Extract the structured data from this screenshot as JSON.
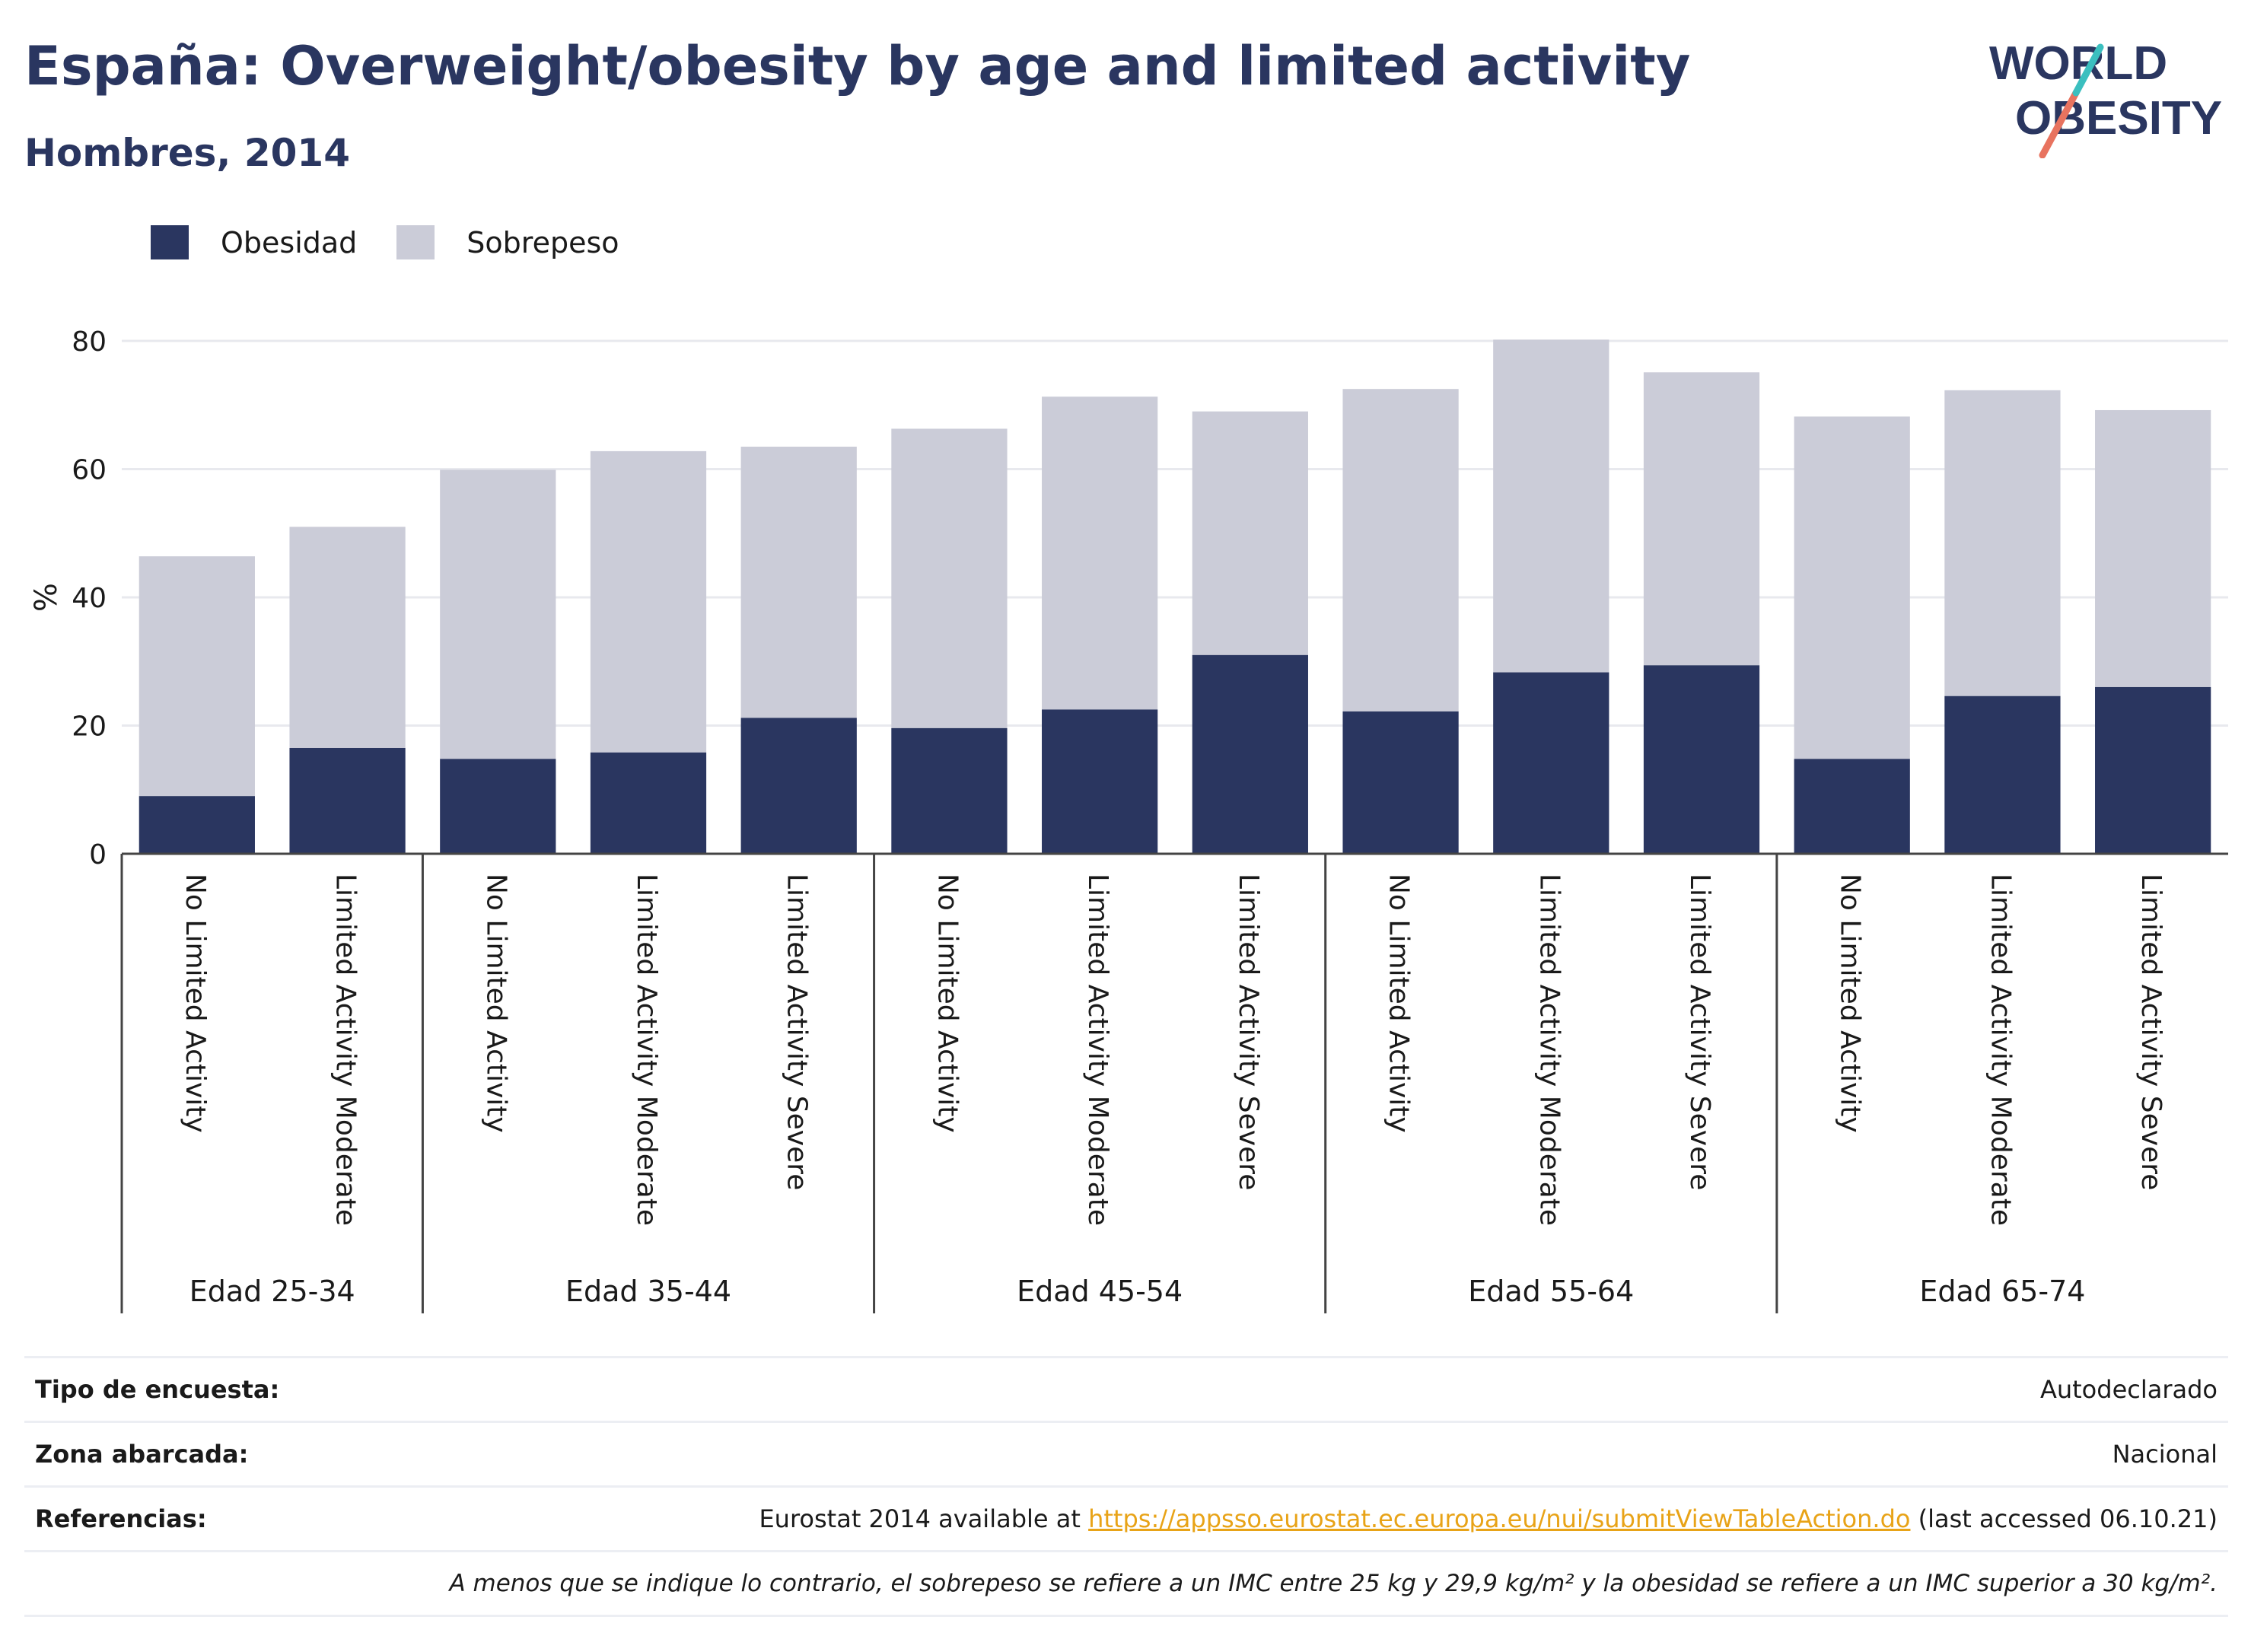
{
  "header": {
    "title": "España: Overweight/obesity by age and limited activity",
    "subtitle": "Hombres, 2014"
  },
  "logo": {
    "line1": "WORLD",
    "line2": "OBESITY"
  },
  "colors": {
    "obesity": "#2a3660",
    "overweight": "#cbccd8",
    "accent_teal": "#3bbfbf",
    "accent_coral": "#e8735f",
    "link": "#e8a317"
  },
  "chart_data": {
    "type": "bar",
    "stacked": true,
    "ylabel": "%",
    "ylim": [
      0,
      80
    ],
    "yticks": [
      0,
      20,
      40,
      60,
      80
    ],
    "grid": true,
    "legend_position": "top-left",
    "groups": [
      {
        "label": "Edad 25-34",
        "categories": [
          "No Limited Activity",
          "Limited Activity Moderate"
        ]
      },
      {
        "label": "Edad 35-44",
        "categories": [
          "No Limited Activity",
          "Limited Activity Moderate",
          "Limited Activity Severe"
        ]
      },
      {
        "label": "Edad 45-54",
        "categories": [
          "No Limited Activity",
          "Limited Activity Moderate",
          "Limited Activity Severe"
        ]
      },
      {
        "label": "Edad 55-64",
        "categories": [
          "No Limited Activity",
          "Limited Activity Moderate",
          "Limited Activity Severe"
        ]
      },
      {
        "label": "Edad 65-74",
        "categories": [
          "No Limited Activity",
          "Limited Activity Moderate",
          "Limited Activity Severe"
        ]
      }
    ],
    "series": [
      {
        "name": "Obesidad",
        "values": [
          9.0,
          16.5,
          14.8,
          15.8,
          21.2,
          19.6,
          22.5,
          31.0,
          22.2,
          28.3,
          29.4,
          14.8,
          24.6,
          26.0
        ]
      },
      {
        "name": "Sobrepeso",
        "values": [
          37.4,
          34.5,
          45.1,
          47.0,
          42.3,
          46.7,
          48.8,
          38.0,
          50.3,
          51.9,
          45.7,
          53.4,
          47.7,
          43.2
        ]
      }
    ]
  },
  "meta": {
    "rows": [
      {
        "key": "Tipo de encuesta:",
        "value": "Autodeclarado"
      },
      {
        "key": "Zona abarcada:",
        "value": "Nacional"
      }
    ],
    "ref_key": "Referencias:",
    "ref_prefix": "Eurostat 2014 available at ",
    "ref_link": "https://appsso.eurostat.ec.europa.eu/nui/submitViewTableAction.do",
    "ref_suffix": " (last accessed 06.10.21)",
    "note": "A menos que se indique lo contrario, el sobrepeso se refiere a un IMC entre 25 kg y 29,9 kg/m² y la obesidad se refiere a un IMC superior a 30 kg/m²."
  }
}
